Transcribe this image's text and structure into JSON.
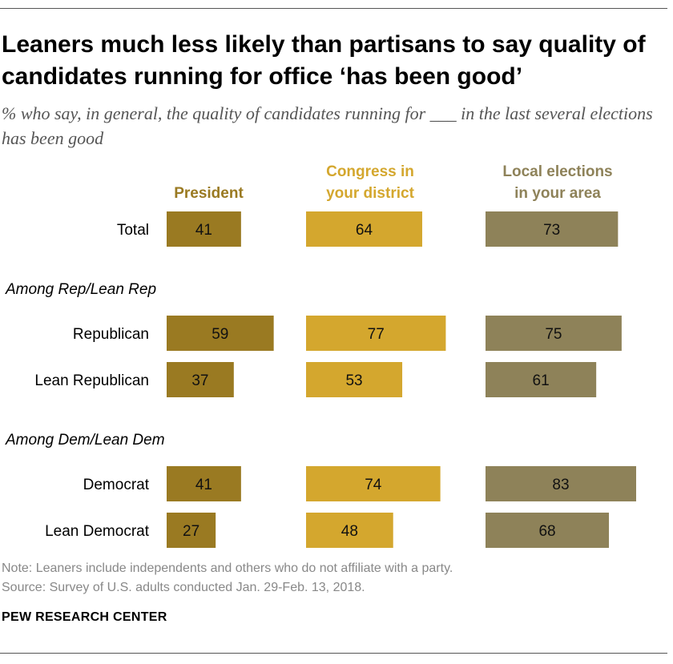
{
  "title": "Leaners much less likely than partisans to say quality of candidates running for office ‘has been good’",
  "subtitle": "% who say, in general, the quality of candidates running for ___ in the last several elections has been good",
  "note": "Note: Leaners include independents and others who do not affiliate with a party.",
  "source": "Source: Survey of U.S. adults conducted Jan. 29-Feb. 13, 2018.",
  "brand": "PEW RESEARCH CENTER",
  "chart_data": {
    "type": "bar",
    "orientation": "horizontal",
    "layout": "small-multiples",
    "grid": false,
    "categories": [
      "Total",
      "Republican",
      "Lean Republican",
      "Democrat",
      "Lean Democrat"
    ],
    "groups": [
      {
        "label": "",
        "categories": [
          "Total"
        ]
      },
      {
        "label": "Among Rep/Lean Rep",
        "categories": [
          "Republican",
          "Lean Republican"
        ]
      },
      {
        "label": "Among Dem/Lean Dem",
        "categories": [
          "Democrat",
          "Lean Democrat"
        ]
      }
    ],
    "series": [
      {
        "name": "President",
        "color": "#9a7a22",
        "values": [
          41,
          59,
          37,
          41,
          27
        ]
      },
      {
        "name": "Congress in\nyour district",
        "color": "#d4a72e",
        "values": [
          64,
          77,
          53,
          74,
          48
        ]
      },
      {
        "name": "Local elections\nin your area",
        "color": "#8e8259",
        "values": [
          73,
          75,
          61,
          83,
          68
        ]
      }
    ],
    "xlim": [
      0,
      83
    ]
  }
}
